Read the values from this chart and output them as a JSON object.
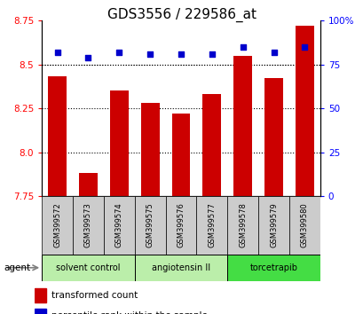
{
  "title": "GDS3556 / 229586_at",
  "samples": [
    "GSM399572",
    "GSM399573",
    "GSM399574",
    "GSM399575",
    "GSM399576",
    "GSM399577",
    "GSM399578",
    "GSM399579",
    "GSM399580"
  ],
  "bar_values": [
    8.43,
    7.88,
    8.35,
    8.28,
    8.22,
    8.33,
    8.55,
    8.42,
    8.72
  ],
  "percentile_values": [
    82,
    79,
    82,
    81,
    81,
    81,
    85,
    82,
    85
  ],
  "ylim_left": [
    7.75,
    8.75
  ],
  "ylim_right": [
    0,
    100
  ],
  "yticks_left": [
    7.75,
    8.0,
    8.25,
    8.5,
    8.75
  ],
  "yticks_right": [
    0,
    25,
    50,
    75,
    100
  ],
  "ytick_labels_right": [
    "0",
    "25",
    "50",
    "75",
    "100%"
  ],
  "bar_color": "#cc0000",
  "marker_color": "#0000cc",
  "bar_width": 0.6,
  "groups": [
    {
      "label": "solvent control",
      "samples": [
        0,
        1,
        2
      ],
      "color": "#bbeeaa"
    },
    {
      "label": "angiotensin II",
      "samples": [
        3,
        4,
        5
      ],
      "color": "#bbeeaa"
    },
    {
      "label": "torcetrapib",
      "samples": [
        6,
        7,
        8
      ],
      "color": "#44dd44"
    }
  ],
  "agent_label": "agent",
  "legend_bar_label": "transformed count",
  "legend_marker_label": "percentile rank within the sample",
  "title_fontsize": 11,
  "tick_fontsize": 7.5,
  "background_color": "#ffffff",
  "sample_box_color": "#cccccc",
  "grid_linestyle": "dotted",
  "grid_color": "#555555"
}
